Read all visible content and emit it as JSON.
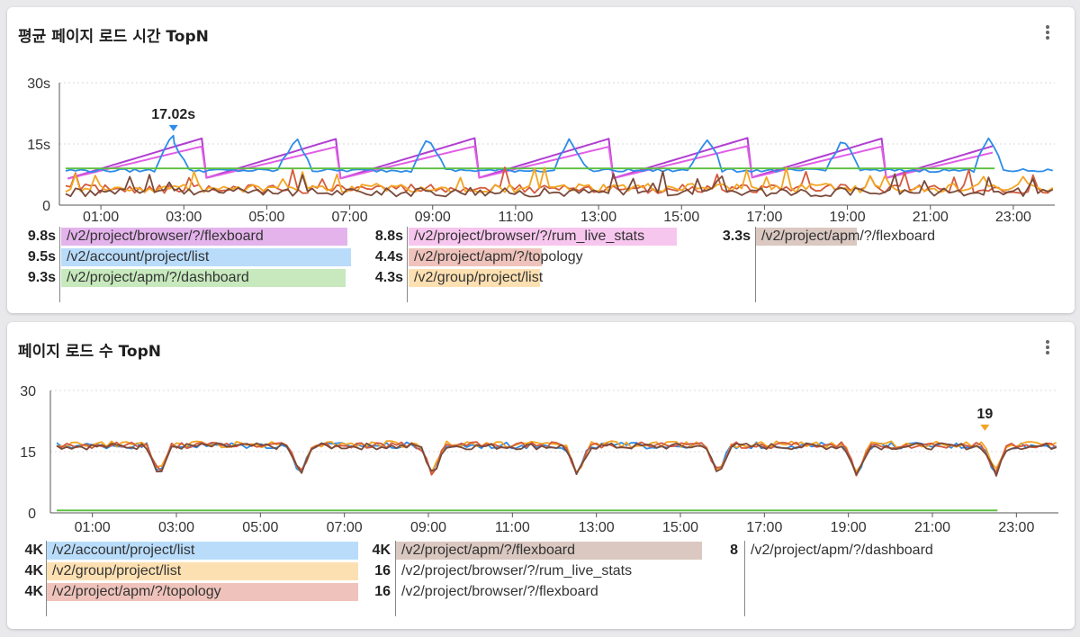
{
  "panels": [
    {
      "title": "평균 페이지 로드 시간 TopN",
      "y_ticks": [
        "30s",
        "15s",
        "0"
      ],
      "x_ticks": [
        "01:00",
        "03:00",
        "05:00",
        "07:00",
        "09:00",
        "11:00",
        "13:00",
        "15:00",
        "17:00",
        "19:00",
        "21:00",
        "23:00"
      ],
      "peak_label": "17.02s",
      "legend": [
        {
          "value": "9.8s",
          "label": "/v2/project/browser/?/flexboard",
          "color": "#e4b3ec"
        },
        {
          "value": "9.5s",
          "label": "/v2/account/project/list",
          "color": "#b9dcfb"
        },
        {
          "value": "9.3s",
          "label": "/v2/project/apm/?/dashboard",
          "color": "#c7e9bd"
        },
        {
          "value": "8.8s",
          "label": "/v2/project/browser/?/rum_live_stats",
          "color": "#f7c6ee"
        },
        {
          "value": "4.4s",
          "label": "/v2/project/apm/?/topology",
          "color": "#efc3bb"
        },
        {
          "value": "4.3s",
          "label": "/v2/group/project/list",
          "color": "#fde0b2"
        },
        {
          "value": "3.3s",
          "label": "/v2/project/apm/?/flexboard",
          "color": "#dac8c1"
        }
      ]
    },
    {
      "title": "페이지 로드 수 TopN",
      "y_ticks": [
        "30",
        "15",
        "0"
      ],
      "x_ticks": [
        "01:00",
        "03:00",
        "05:00",
        "07:00",
        "09:00",
        "11:00",
        "13:00",
        "15:00",
        "17:00",
        "19:00",
        "21:00",
        "23:00"
      ],
      "peak_label": "19",
      "legend": [
        {
          "value": "4K",
          "label": "/v2/account/project/list",
          "color": "#b9dcfb"
        },
        {
          "value": "4K",
          "label": "/v2/group/project/list",
          "color": "#fde0b2"
        },
        {
          "value": "4K",
          "label": "/v2/project/apm/?/topology",
          "color": "#efc3bb"
        },
        {
          "value": "4K",
          "label": "/v2/project/apm/?/flexboard",
          "color": "#dac8c1"
        },
        {
          "value": "16",
          "label": "/v2/project/browser/?/rum_live_stats",
          "color": ""
        },
        {
          "value": "16",
          "label": "/v2/project/browser/?/flexboard",
          "color": ""
        },
        {
          "value": "8",
          "label": "/v2/project/apm/?/dashboard",
          "color": ""
        }
      ]
    }
  ],
  "chart_data": [
    {
      "type": "line",
      "title": "평균 페이지 로드 시간 TopN",
      "ylim": [
        0,
        30
      ],
      "y_unit": "s",
      "x_range": [
        "00:00",
        "24:00"
      ],
      "annotation": {
        "x": "02:45",
        "y": 17.02,
        "label": "17.02s"
      },
      "series": [
        {
          "name": "/v2/project/browser/?/flexboard",
          "color": "#b13ed1",
          "pattern": "sawtooth",
          "low": 6.5,
          "high": 16.5
        },
        {
          "name": "/v2/project/browser/?/rum_live_stats",
          "color": "#e15ee6",
          "pattern": "sawtooth",
          "low": 6.5,
          "high": 14.5
        },
        {
          "name": "/v2/account/project/list",
          "color": "#2d8ce8",
          "pattern": "spiky",
          "base": 8.5,
          "peak": 17.02
        },
        {
          "name": "/v2/project/apm/?/dashboard",
          "color": "#5bbf3f",
          "pattern": "flat",
          "base": 9.0
        },
        {
          "name": "/v2/project/apm/?/topology",
          "color": "#d45a3c",
          "pattern": "noise",
          "base": 4.0
        },
        {
          "name": "/v2/group/project/list",
          "color": "#f3a521",
          "pattern": "noise",
          "base": 4.2
        },
        {
          "name": "/v2/project/apm/?/flexboard",
          "color": "#7a4a3a",
          "pattern": "noise",
          "base": 3.2
        }
      ]
    },
    {
      "type": "line",
      "title": "페이지 로드 수 TopN",
      "ylim": [
        0,
        30
      ],
      "x_range": [
        "00:00",
        "24:00"
      ],
      "annotation": {
        "x": "22:15",
        "y": 19,
        "label": "19"
      },
      "series": [
        {
          "name": "/v2/account/project/list",
          "color": "#2d8ce8",
          "pattern": "dips",
          "base": 16.5
        },
        {
          "name": "/v2/group/project/list",
          "color": "#f3a521",
          "pattern": "dips",
          "base": 16.8
        },
        {
          "name": "/v2/project/apm/?/topology",
          "color": "#d45a3c",
          "pattern": "dips",
          "base": 16.6
        },
        {
          "name": "/v2/project/apm/?/flexboard",
          "color": "#7a4a3a",
          "pattern": "dips",
          "base": 16.3
        },
        {
          "name": "/v2/project/apm/?/dashboard",
          "color": "#5bbf3f",
          "pattern": "flat",
          "base": 0.6
        }
      ]
    }
  ]
}
